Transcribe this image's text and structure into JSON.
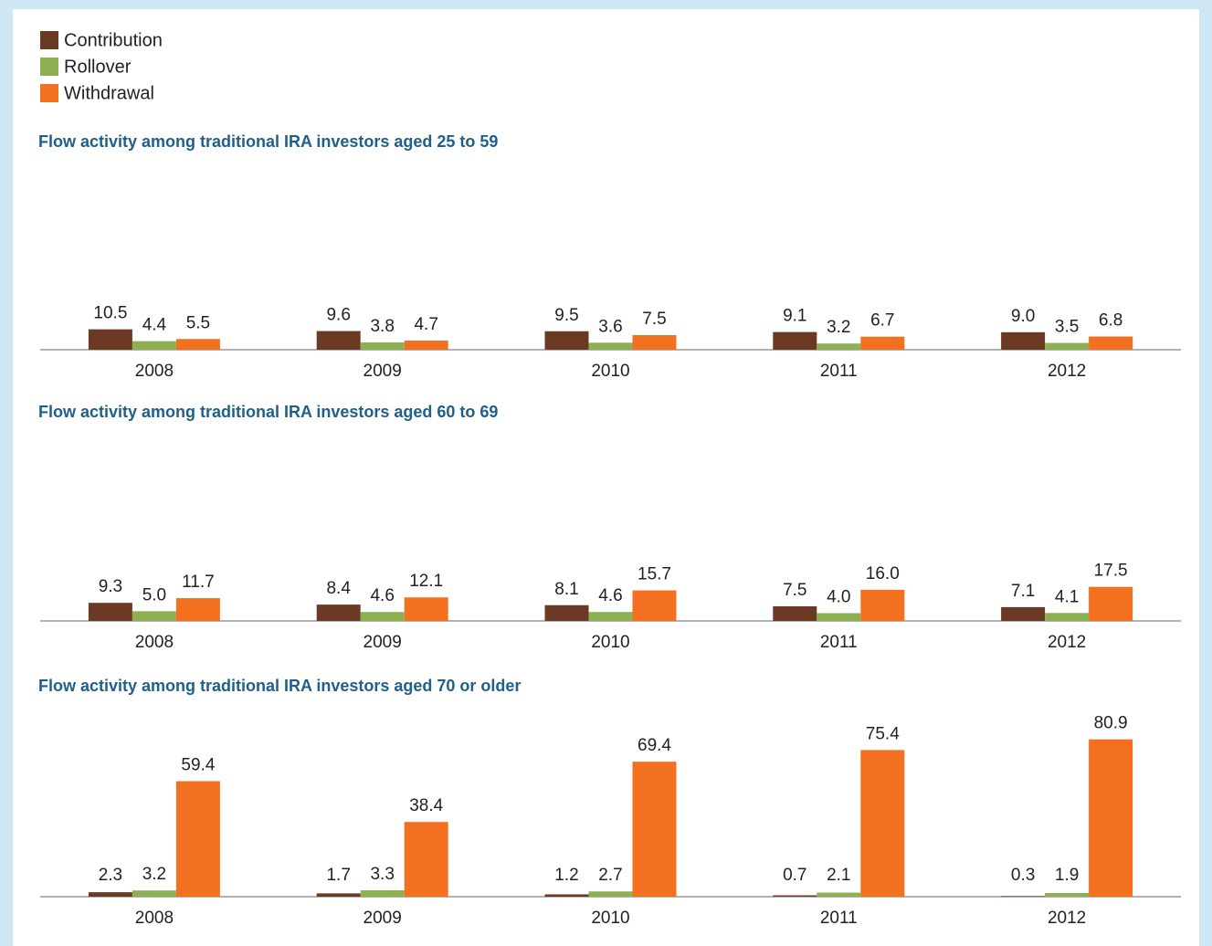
{
  "legend": [
    {
      "name": "Contribution",
      "color": "#6b3a25"
    },
    {
      "name": "Rollover",
      "color": "#8db152"
    },
    {
      "name": "Withdrawal",
      "color": "#f37021"
    }
  ],
  "chart_data": [
    {
      "type": "bar",
      "title": "Flow activity among traditional IRA investors aged 25 to 59",
      "categories": [
        "2008",
        "2009",
        "2010",
        "2011",
        "2012"
      ],
      "ylim": [
        0,
        100
      ],
      "series": [
        {
          "values": [
            10.5,
            9.6,
            9.5,
            9.1,
            9.0
          ],
          "value_labels": [
            "10.5",
            "9.6",
            "9.5",
            "9.1",
            "9.0"
          ]
        },
        {
          "values": [
            4.4,
            3.8,
            3.6,
            3.2,
            3.5
          ],
          "value_labels": [
            "4.4",
            "3.8",
            "3.6",
            "3.2",
            "3.5"
          ]
        },
        {
          "values": [
            5.5,
            4.7,
            7.5,
            6.7,
            6.8
          ],
          "value_labels": [
            "5.5",
            "4.7",
            "7.5",
            "6.7",
            "6.8"
          ]
        }
      ]
    },
    {
      "type": "bar",
      "title": "Flow activity among traditional IRA investors aged 60 to 69",
      "categories": [
        "2008",
        "2009",
        "2010",
        "2011",
        "2012"
      ],
      "ylim": [
        0,
        100
      ],
      "series": [
        {
          "values": [
            9.3,
            8.4,
            8.1,
            7.5,
            7.1
          ],
          "value_labels": [
            "9.3",
            "8.4",
            "8.1",
            "7.5",
            "7.1"
          ]
        },
        {
          "values": [
            5.0,
            4.6,
            4.6,
            4.0,
            4.1
          ],
          "value_labels": [
            "5.0",
            "4.6",
            "4.6",
            "4.0",
            "4.1"
          ]
        },
        {
          "values": [
            11.7,
            12.1,
            15.7,
            16.0,
            17.5
          ],
          "value_labels": [
            "11.7",
            "12.1",
            "15.7",
            "16.0",
            "17.5"
          ]
        }
      ]
    },
    {
      "type": "bar",
      "title": "Flow activity among traditional IRA investors aged 70 or older",
      "categories": [
        "2008",
        "2009",
        "2010",
        "2011",
        "2012"
      ],
      "ylim": [
        0,
        100
      ],
      "series": [
        {
          "values": [
            2.3,
            1.7,
            1.2,
            0.7,
            0.3
          ],
          "value_labels": [
            "2.3",
            "1.7",
            "1.2",
            "0.7",
            "0.3"
          ]
        },
        {
          "values": [
            3.2,
            3.3,
            2.7,
            2.1,
            1.9
          ],
          "value_labels": [
            "3.2",
            "3.3",
            "2.7",
            "2.1",
            "1.9"
          ]
        },
        {
          "values": [
            59.4,
            38.4,
            69.4,
            75.4,
            80.9
          ],
          "value_labels": [
            "59.4",
            "38.4",
            "69.4",
            "75.4",
            "80.9"
          ]
        }
      ]
    }
  ]
}
